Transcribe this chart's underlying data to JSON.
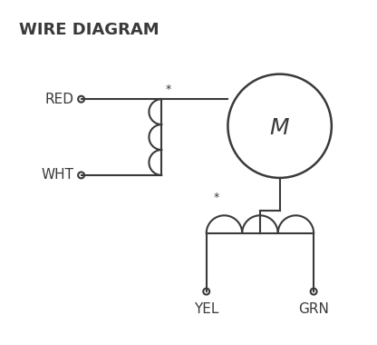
{
  "title": "WIRE DIAGRAM",
  "background_color": "#ffffff",
  "line_color": "#3a3a3a",
  "line_width": 1.5,
  "red_label": "RED",
  "wht_label": "WHT",
  "yel_label": "YEL",
  "grn_label": "GRN",
  "motor_label": "M",
  "dot_size": 18,
  "label_fontsize": 11,
  "title_fontsize": 13,
  "motor_fontsize": 18
}
